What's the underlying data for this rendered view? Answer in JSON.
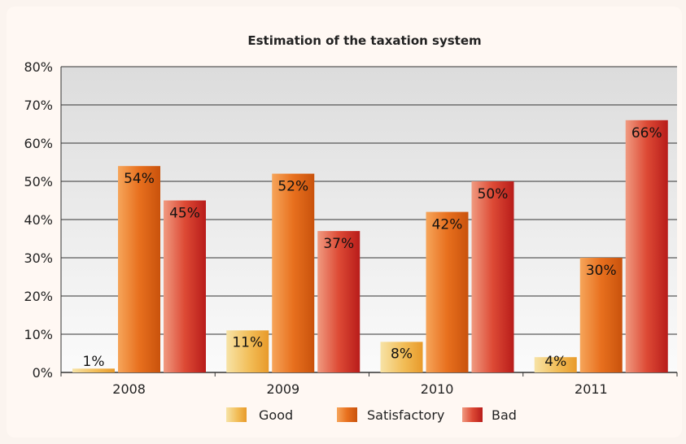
{
  "chart_data": {
    "type": "bar",
    "title": "Estimation of the taxation system",
    "xlabel": "",
    "ylabel": "",
    "categories": [
      "2008",
      "2009",
      "2010",
      "2011"
    ],
    "series": [
      {
        "name": "Good",
        "values": [
          1,
          11,
          8,
          4
        ],
        "labels": [
          "1%",
          "11%",
          "8%",
          "4%"
        ],
        "color": "#f2bd57"
      },
      {
        "name": "Satisfactory",
        "values": [
          54,
          52,
          42,
          30
        ],
        "labels": [
          "54%",
          "52%",
          "42%",
          "30%"
        ],
        "color": "#e8701e"
      },
      {
        "name": "Bad",
        "values": [
          45,
          37,
          50,
          66
        ],
        "labels": [
          "45%",
          "37%",
          "50%",
          "66%"
        ],
        "color": "#d83a2c"
      }
    ],
    "ylim": [
      0,
      80
    ],
    "yticks": [
      0,
      10,
      20,
      30,
      40,
      50,
      60,
      70,
      80
    ],
    "ytick_labels": [
      "0%",
      "10%",
      "20%",
      "30%",
      "40%",
      "50%",
      "60%",
      "70%",
      "80%"
    ],
    "grid": true,
    "legend": "bottom"
  }
}
